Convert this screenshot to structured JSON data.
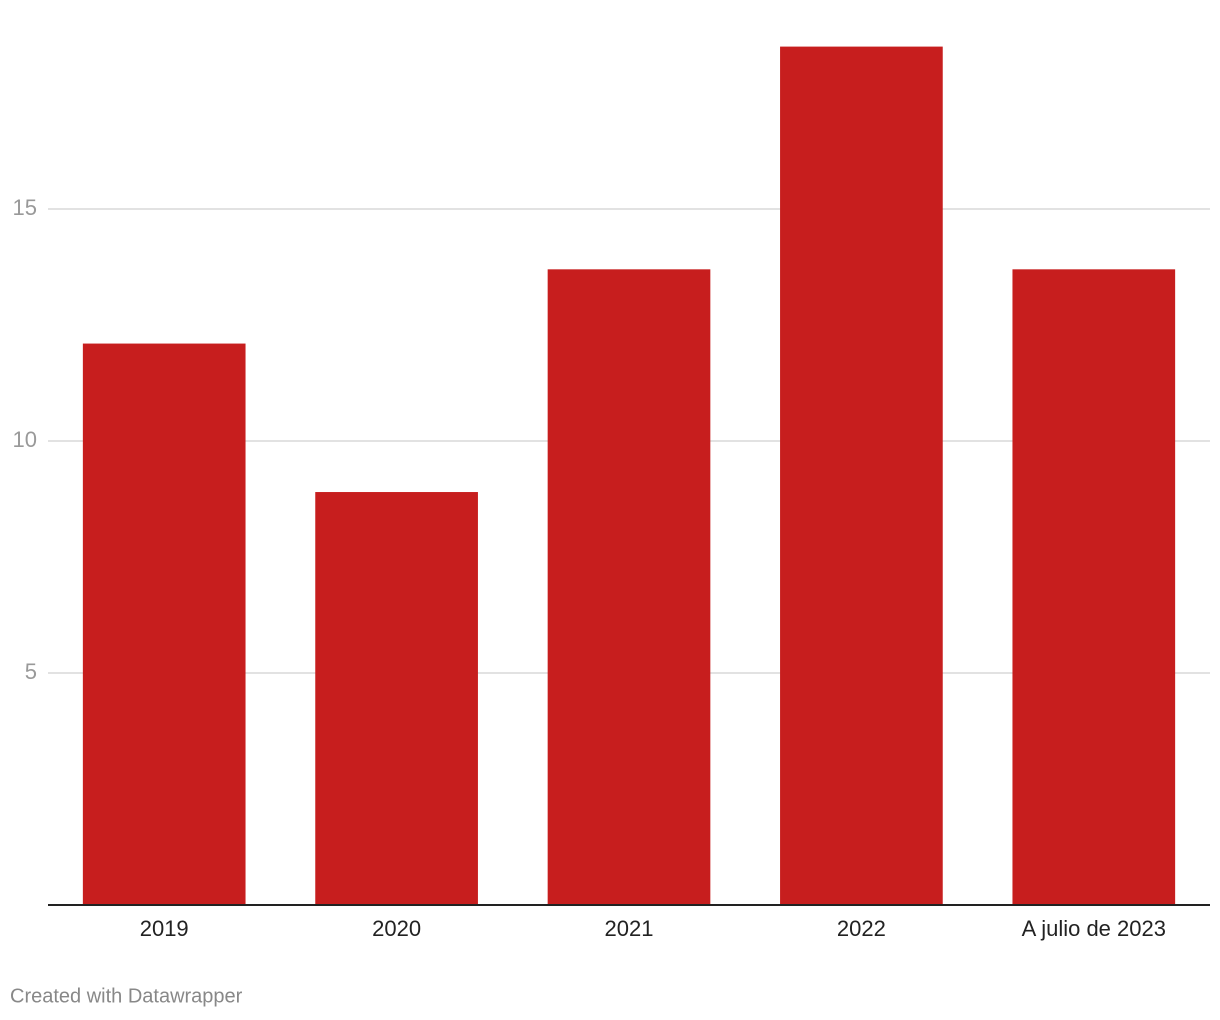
{
  "chart_data": {
    "type": "bar",
    "categories": [
      "2019",
      "2020",
      "2021",
      "2022",
      "A julio de 2023"
    ],
    "values": [
      12.1,
      8.9,
      13.7,
      18.5,
      13.7
    ],
    "color": "#c71e1e",
    "ylim": [
      0,
      18.5
    ],
    "yticks": [
      5,
      10,
      15
    ],
    "grid": true,
    "credit": "Created with Datawrapper"
  }
}
